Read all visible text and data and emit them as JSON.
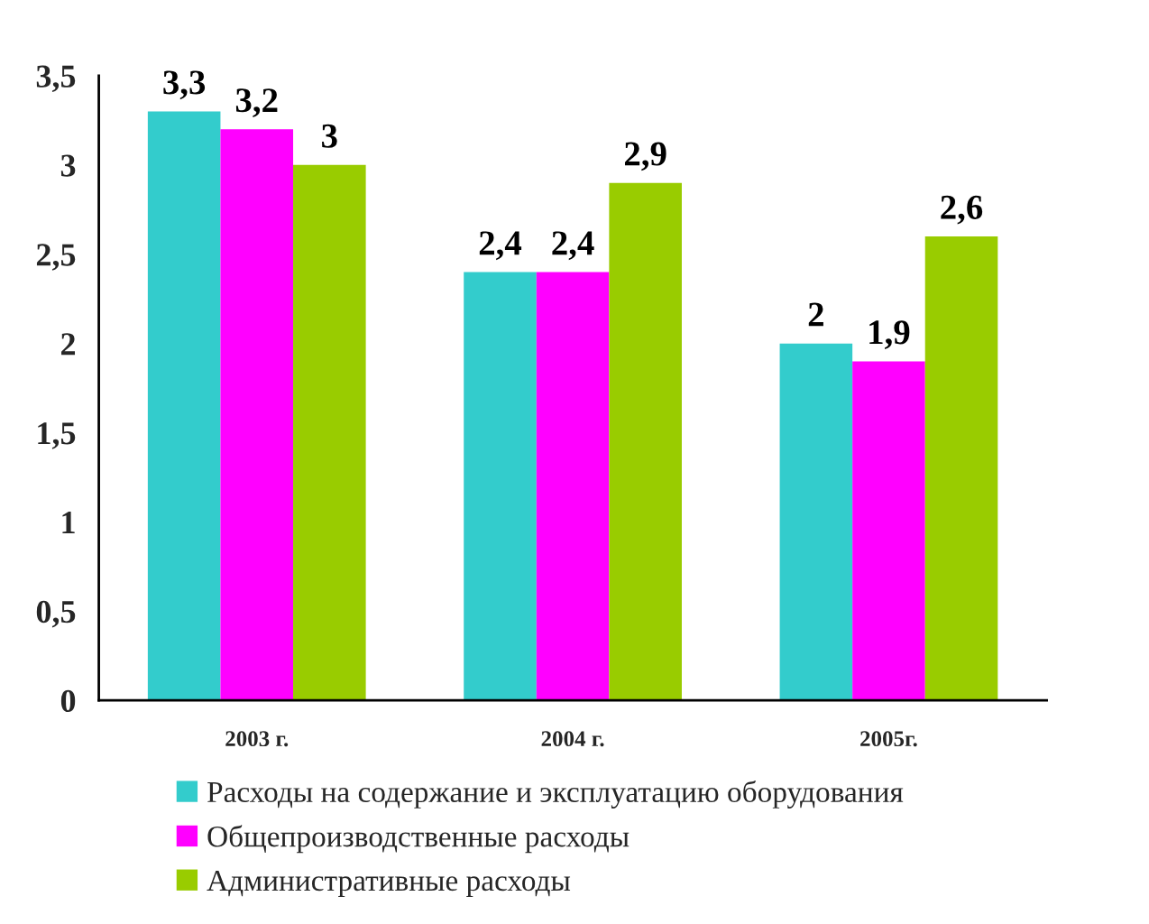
{
  "chart_data": {
    "type": "bar",
    "categories": [
      "2003 г.",
      "2004 г.",
      "2005г."
    ],
    "series": [
      {
        "name": "Расходы на содержание и эксплуатацию оборудования",
        "color": "#33cccc",
        "values": [
          3.3,
          2.4,
          2.0
        ],
        "value_labels": [
          "3,3",
          "2,4",
          "2"
        ]
      },
      {
        "name": "Общепроизводственные расходы",
        "color": "#ff00ff",
        "values": [
          3.2,
          2.4,
          1.9
        ],
        "value_labels": [
          "3,2",
          "2,4",
          "1,9"
        ]
      },
      {
        "name": "Административные расходы",
        "color": "#99cc00",
        "values": [
          3.0,
          2.9,
          2.6
        ],
        "value_labels": [
          "3",
          "2,9",
          "2,6"
        ]
      }
    ],
    "ylim": [
      0,
      3.5
    ],
    "yticks": [
      0,
      {
        "value": 0.5,
        "label": "0,5"
      },
      1,
      {
        "value": 1.5,
        "label": "1,5"
      },
      2,
      {
        "value": 2.5,
        "label": "2,5"
      },
      3,
      {
        "value": 3.5,
        "label": "3,5"
      }
    ],
    "grid": false,
    "legend": "bottom"
  }
}
